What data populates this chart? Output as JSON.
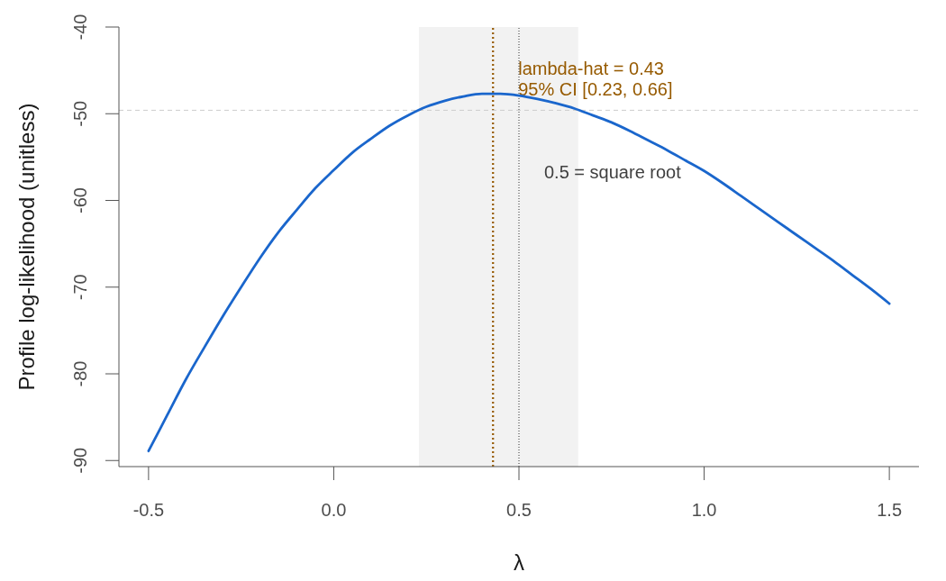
{
  "chart_data": {
    "type": "line",
    "xlabel": "λ",
    "ylabel": "Profile log-likelihood (unitless)",
    "x": [
      -0.5,
      -0.45,
      -0.4,
      -0.35,
      -0.3,
      -0.25,
      -0.2,
      -0.15,
      -0.1,
      -0.05,
      0,
      0.05,
      0.1,
      0.15,
      0.2,
      0.25,
      0.3,
      0.35,
      0.4,
      0.43,
      0.45,
      0.5,
      0.55,
      0.6,
      0.65,
      0.7,
      0.75,
      0.8,
      0.85,
      0.9,
      0.95,
      1,
      1.05,
      1.1,
      1.15,
      1.2,
      1.25,
      1.3,
      1.35,
      1.4,
      1.45,
      1.5
    ],
    "series": [
      {
        "color": "#1a66cc",
        "values": [
          -88.9,
          -84.8,
          -80.7,
          -77.0,
          -73.4,
          -70.0,
          -66.7,
          -63.7,
          -61.1,
          -58.6,
          -56.5,
          -54.5,
          -52.9,
          -51.4,
          -50.2,
          -49.2,
          -48.5,
          -48.0,
          -47.7,
          -47.7,
          -47.7,
          -47.9,
          -48.3,
          -48.8,
          -49.4,
          -50.2,
          -51.0,
          -52.0,
          -53.1,
          -54.2,
          -55.4,
          -56.6,
          -58.0,
          -59.5,
          -61.0,
          -62.5,
          -64.0,
          -65.5,
          -67.0,
          -68.6,
          -70.2,
          -71.9
        ]
      }
    ],
    "xlim": [
      -0.58,
      1.58
    ],
    "ylim": [
      -90.7,
      -40
    ],
    "xticks": [
      -0.5,
      {
        "value": 0,
        "label": "0.0"
      },
      0.5,
      {
        "value": 1,
        "label": "1.0"
      },
      1.5
    ],
    "yticks": [
      -90,
      -80,
      -70,
      -60,
      -50,
      -40
    ],
    "line_style": "solid",
    "ref_lines": [
      {
        "axis": "x",
        "value": 0.43,
        "label": "lambda-hat = 0.43",
        "color": "#965a00",
        "line_style": "dotted"
      },
      {
        "axis": "x",
        "value": 0.5,
        "label": "0.5 = square root",
        "color": "#333333",
        "line_style": "dotted"
      },
      {
        "axis": "y",
        "value": -49.6,
        "color": "#cccccc",
        "line_style": "dashed"
      }
    ],
    "bands": [
      {
        "axis": "x",
        "from": 0.23,
        "to": 0.66,
        "label": "95% CI [0.23, 0.66]",
        "color": "#f2f2f2"
      }
    ]
  }
}
